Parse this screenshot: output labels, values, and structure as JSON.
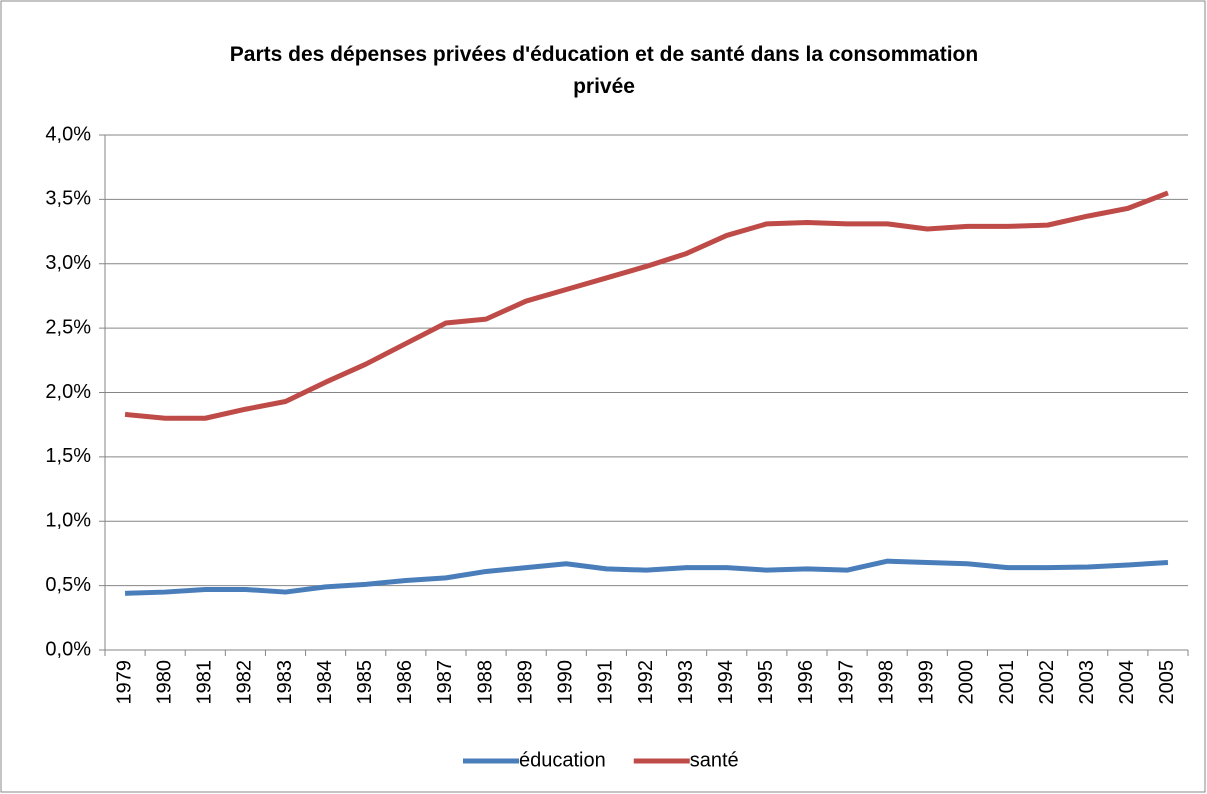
{
  "chart_data": {
    "type": "line",
    "title": "Parts des dépenses privées d'éducation et de santé dans la consommation privée",
    "categories": [
      "1979",
      "1980",
      "1981",
      "1982",
      "1983",
      "1984",
      "1985",
      "1986",
      "1987",
      "1988",
      "1989",
      "1990",
      "1991",
      "1992",
      "1993",
      "1994",
      "1995",
      "1996",
      "1997",
      "1998",
      "1999",
      "2000",
      "2001",
      "2002",
      "2003",
      "2004",
      "2005"
    ],
    "series": [
      {
        "name": "éducation",
        "color": "#4a7ebb",
        "values": [
          0.44,
          0.45,
          0.47,
          0.47,
          0.45,
          0.49,
          0.51,
          0.54,
          0.56,
          0.61,
          0.64,
          0.67,
          0.63,
          0.62,
          0.64,
          0.64,
          0.62,
          0.63,
          0.62,
          0.69,
          0.68,
          0.67,
          0.64,
          0.64,
          0.645,
          0.66,
          0.68
        ]
      },
      {
        "name": "santé",
        "color": "#be4b48",
        "values": [
          1.83,
          1.8,
          1.8,
          1.87,
          1.93,
          2.08,
          2.22,
          2.38,
          2.54,
          2.57,
          2.71,
          2.8,
          2.89,
          2.98,
          3.08,
          3.22,
          3.31,
          3.32,
          3.31,
          3.31,
          3.27,
          3.29,
          3.29,
          3.3,
          3.37,
          3.43,
          3.55
        ]
      }
    ],
    "ylim": [
      0,
      4
    ],
    "yticks": [
      {
        "value": 0,
        "label": "0,0%"
      },
      {
        "value": 0.5,
        "label": "0,5%"
      },
      {
        "value": 1,
        "label": "1,0%"
      },
      {
        "value": 1.5,
        "label": "1,5%"
      },
      {
        "value": 2,
        "label": "2,0%"
      },
      {
        "value": 2.5,
        "label": "2,5%"
      },
      {
        "value": 3,
        "label": "3,0%"
      },
      {
        "value": 3.5,
        "label": "3,5%"
      },
      {
        "value": 4,
        "label": "4,0%"
      }
    ],
    "grid": true,
    "legend": "bottom"
  }
}
